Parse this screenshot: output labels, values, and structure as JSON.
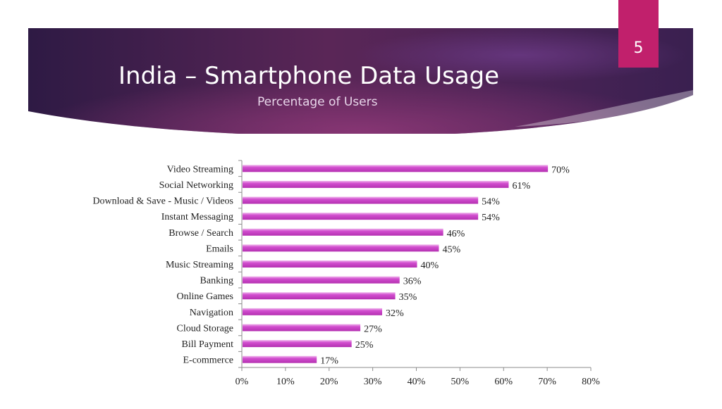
{
  "slide": {
    "title": "India – Smartphone Data Usage",
    "subtitle": "Percentage of Users",
    "number": "5"
  },
  "colors": {
    "bar": "#c93ec6",
    "bar_highlight": "#e9a3e6",
    "tab": "#c1206c",
    "banner_dark": "#321a45",
    "banner_mid": "#6a2a62"
  },
  "chart_data": {
    "type": "bar",
    "orientation": "horizontal",
    "categories": [
      "Video Streaming",
      "Social Networking",
      "Download & Save - Music / Videos",
      "Instant Messaging",
      "Browse / Search",
      "Emails",
      "Music Streaming",
      "Banking",
      "Online Games",
      "Navigation",
      "Cloud Storage",
      "Bill Payment",
      "E-commerce"
    ],
    "values": [
      70,
      61,
      54,
      54,
      46,
      45,
      40,
      36,
      35,
      32,
      27,
      25,
      17
    ],
    "value_labels": [
      "70%",
      "61%",
      "54%",
      "54%",
      "46%",
      "45%",
      "40%",
      "36%",
      "35%",
      "32%",
      "27%",
      "25%",
      "17%"
    ],
    "xlim": [
      0,
      80
    ],
    "x_ticks": [
      0,
      10,
      20,
      30,
      40,
      50,
      60,
      70,
      80
    ],
    "x_tick_labels": [
      "0%",
      "10%",
      "20%",
      "30%",
      "40%",
      "50%",
      "60%",
      "70%",
      "80%"
    ],
    "grid": false,
    "legend": "none"
  }
}
